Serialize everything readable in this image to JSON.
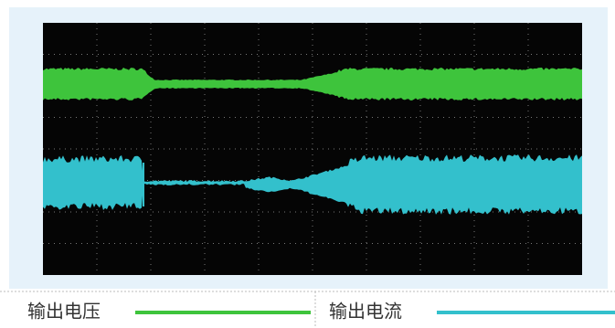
{
  "legend": {
    "items": [
      {
        "label": "输出电压",
        "color": "#3ec43c"
      },
      {
        "label": "输出电流",
        "color": "#33c0cc"
      }
    ]
  }
}
